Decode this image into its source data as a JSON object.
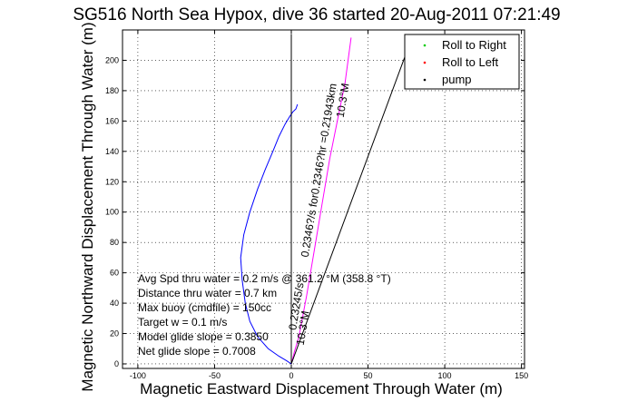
{
  "chart_data": {
    "type": "line",
    "title": "SG516 North Sea Hypox, dive 36 started 20-Aug-2011 07:21:49",
    "xlabel": "Magnetic Eastward Displacement Through Water (m)",
    "ylabel": "Magnetic Northward Displacement Through Water (m)",
    "xlim": [
      -110,
      152
    ],
    "ylim": [
      -3,
      220
    ],
    "xticks": [
      -100,
      -50,
      0,
      50,
      100,
      150
    ],
    "yticks": [
      0,
      20,
      40,
      60,
      80,
      100,
      120,
      140,
      160,
      180,
      200
    ],
    "grid": true,
    "legend_position": "top-right",
    "legend": [
      {
        "label": "Roll to Right",
        "color": "#00cc00",
        "marker": "."
      },
      {
        "label": "Roll to Left",
        "color": "#ff0000",
        "marker": "."
      },
      {
        "label": "pump",
        "color": "#000000",
        "marker": "."
      }
    ],
    "series": [
      {
        "color": "#0000ff",
        "x": [
          0,
          -3,
          -8,
          -15,
          -22,
          -27,
          -30,
          -32,
          -33,
          -31,
          -27,
          -22,
          -17,
          -12,
          -8,
          -4,
          -1,
          1,
          3,
          4
        ],
        "y": [
          0,
          2,
          5,
          10,
          18,
          28,
          40,
          55,
          70,
          85,
          100,
          115,
          128,
          140,
          150,
          158,
          163,
          166,
          168,
          171
        ]
      },
      {
        "color": "#ff00ff",
        "x": [
          0,
          2,
          5,
          10,
          15,
          20,
          25,
          30,
          35,
          39
        ],
        "y": [
          0,
          8,
          18,
          45,
          75,
          105,
          135,
          160,
          185,
          215
        ]
      },
      {
        "color": "#000000",
        "x": [
          0,
          75
        ],
        "y": [
          0,
          205
        ]
      },
      {
        "color": "#000000",
        "x": [
          0,
          0
        ],
        "y": [
          0,
          217
        ]
      }
    ],
    "annotations": {
      "stats": [
        "Avg Spd thru water =  0.2 m/s @ 361.2    °M (358.8 °T)",
        "Distance thru water =  0.7 km",
        "Max buoy (cmdfile) = 150cc",
        "Target w = 0.1 m/s",
        "Model glide slope = 0.3850",
        "Net glide slope = 0.7008"
      ],
      "current_label": "0.2346?/s for0.2346?hr =0.21943km",
      "current_dir": "10.3°M",
      "drift_label": "0.23245/s",
      "drift_dir": "10.3°M"
    }
  }
}
